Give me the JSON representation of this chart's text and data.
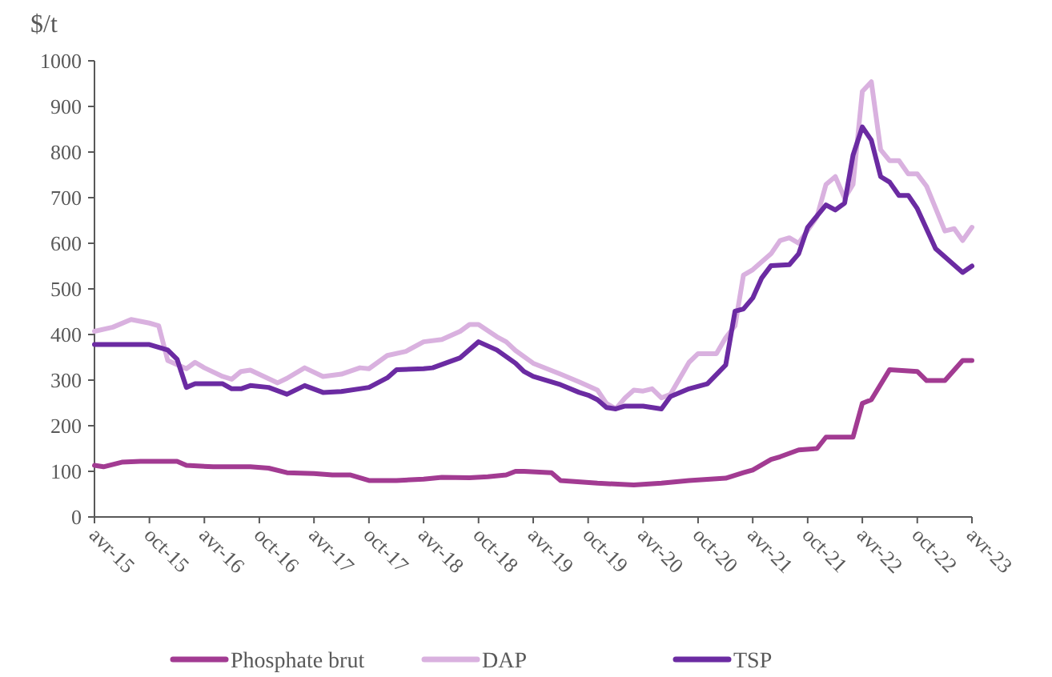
{
  "chart_data": {
    "type": "line",
    "ylabel": "$/t",
    "ylim": [
      0,
      1000
    ],
    "yticks": [
      0,
      100,
      200,
      300,
      400,
      500,
      600,
      700,
      800,
      900,
      1000
    ],
    "xlim": [
      "2015-04",
      "2023-04"
    ],
    "xticks": [
      {
        "value": "2015-04",
        "label": "avr-15"
      },
      {
        "value": "2015-10",
        "label": "oct-15"
      },
      {
        "value": "2016-04",
        "label": "avr-16"
      },
      {
        "value": "2016-10",
        "label": "oct-16"
      },
      {
        "value": "2017-04",
        "label": "avr-17"
      },
      {
        "value": "2017-10",
        "label": "oct-17"
      },
      {
        "value": "2018-04",
        "label": "avr-18"
      },
      {
        "value": "2018-10",
        "label": "oct-18"
      },
      {
        "value": "2019-04",
        "label": "avr-19"
      },
      {
        "value": "2019-10",
        "label": "oct-19"
      },
      {
        "value": "2020-04",
        "label": "avr-20"
      },
      {
        "value": "2020-10",
        "label": "oct-20"
      },
      {
        "value": "2021-04",
        "label": "avr-21"
      },
      {
        "value": "2021-10",
        "label": "oct-21"
      },
      {
        "value": "2022-04",
        "label": "avr-22"
      },
      {
        "value": "2022-10",
        "label": "oct-22"
      },
      {
        "value": "2023-04",
        "label": "avr-23"
      }
    ],
    "grid": false,
    "legend": "bottom",
    "marker": "none",
    "line_style": "solid",
    "series": [
      {
        "name": "Phosphate brut",
        "color": "#a23b92",
        "x": [
          "2015-04",
          "2015-05",
          "2015-07",
          "2015-09",
          "2016-01",
          "2016-02",
          "2016-05",
          "2016-09",
          "2016-11",
          "2017-01",
          "2017-04",
          "2017-06",
          "2017-08",
          "2017-10",
          "2018-01",
          "2018-04",
          "2018-06",
          "2018-09",
          "2018-11",
          "2019-01",
          "2019-02",
          "2019-03",
          "2019-06",
          "2019-07",
          "2019-11",
          "2020-03",
          "2020-06",
          "2020-09",
          "2021-01",
          "2021-03",
          "2021-04",
          "2021-06",
          "2021-07",
          "2021-09",
          "2021-11",
          "2021-12",
          "2022-03",
          "2022-04",
          "2022-05",
          "2022-07",
          "2022-10",
          "2022-11",
          "2023-01",
          "2023-03",
          "2023-04"
        ],
        "values": [
          113,
          110,
          120,
          122,
          122,
          113,
          110,
          110,
          107,
          97,
          95,
          92,
          92,
          80,
          80,
          83,
          87,
          86,
          88,
          92,
          100,
          100,
          97,
          80,
          74,
          70,
          74,
          80,
          85,
          97,
          103,
          126,
          132,
          147,
          150,
          175,
          175,
          249,
          257,
          323,
          319,
          299,
          299,
          343,
          343
        ]
      },
      {
        "name": "DAP",
        "color": "#d9b1df",
        "x": [
          "2015-04",
          "2015-06",
          "2015-08",
          "2015-10",
          "2015-11",
          "2015-12",
          "2016-02",
          "2016-03",
          "2016-04",
          "2016-06",
          "2016-07",
          "2016-08",
          "2016-09",
          "2016-12",
          "2017-01",
          "2017-03",
          "2017-05",
          "2017-07",
          "2017-09",
          "2017-10",
          "2017-12",
          "2018-02",
          "2018-04",
          "2018-06",
          "2018-08",
          "2018-09",
          "2018-10",
          "2018-12",
          "2019-01",
          "2019-02",
          "2019-04",
          "2019-07",
          "2019-09",
          "2019-11",
          "2019-12",
          "2020-01",
          "2020-02",
          "2020-03",
          "2020-04",
          "2020-05",
          "2020-06",
          "2020-07",
          "2020-09",
          "2020-10",
          "2020-12",
          "2021-01",
          "2021-02",
          "2021-03",
          "2021-04",
          "2021-06",
          "2021-07",
          "2021-08",
          "2021-09",
          "2021-11",
          "2021-12",
          "2022-01",
          "2022-02",
          "2022-03",
          "2022-04",
          "2022-05",
          "2022-06",
          "2022-07",
          "2022-08",
          "2022-09",
          "2022-10",
          "2022-11",
          "2023-01",
          "2023-02",
          "2023-03",
          "2023-04"
        ],
        "values": [
          407,
          416,
          433,
          425,
          419,
          343,
          325,
          339,
          327,
          308,
          302,
          319,
          322,
          294,
          304,
          327,
          308,
          313,
          327,
          325,
          354,
          363,
          384,
          389,
          407,
          422,
          422,
          395,
          384,
          365,
          337,
          313,
          296,
          278,
          249,
          237,
          261,
          278,
          276,
          281,
          261,
          269,
          339,
          358,
          358,
          393,
          419,
          530,
          542,
          577,
          606,
          612,
          600,
          658,
          729,
          746,
          699,
          729,
          933,
          954,
          805,
          781,
          781,
          752,
          752,
          725,
          627,
          632,
          606,
          635
        ]
      },
      {
        "name": "TSP",
        "color": "#6b2ba2",
        "x": [
          "2015-04",
          "2015-10",
          "2015-12",
          "2016-01",
          "2016-02",
          "2016-03",
          "2016-06",
          "2016-07",
          "2016-08",
          "2016-09",
          "2016-11",
          "2017-01",
          "2017-03",
          "2017-05",
          "2017-07",
          "2017-10",
          "2017-12",
          "2018-01",
          "2018-04",
          "2018-05",
          "2018-08",
          "2018-10",
          "2018-12",
          "2019-02",
          "2019-03",
          "2019-04",
          "2019-07",
          "2019-09",
          "2019-10",
          "2019-11",
          "2019-12",
          "2020-01",
          "2020-02",
          "2020-04",
          "2020-06",
          "2020-07",
          "2020-09",
          "2020-11",
          "2021-01",
          "2021-02",
          "2021-03",
          "2021-04",
          "2021-05",
          "2021-06",
          "2021-08",
          "2021-09",
          "2021-10",
          "2021-12",
          "2022-01",
          "2022-02",
          "2022-03",
          "2022-04",
          "2022-05",
          "2022-06",
          "2022-07",
          "2022-08",
          "2022-09",
          "2022-10",
          "2022-12",
          "2023-01",
          "2023-03",
          "2023-04"
        ],
        "values": [
          378,
          378,
          366,
          346,
          284,
          292,
          292,
          281,
          281,
          288,
          284,
          269,
          288,
          273,
          275,
          284,
          305,
          323,
          325,
          327,
          349,
          384,
          366,
          337,
          319,
          308,
          290,
          273,
          267,
          257,
          240,
          237,
          243,
          243,
          237,
          264,
          281,
          292,
          333,
          451,
          456,
          480,
          524,
          551,
          553,
          577,
          635,
          684,
          673,
          688,
          793,
          855,
          826,
          746,
          734,
          705,
          705,
          676,
          588,
          570,
          536,
          550
        ]
      }
    ]
  }
}
